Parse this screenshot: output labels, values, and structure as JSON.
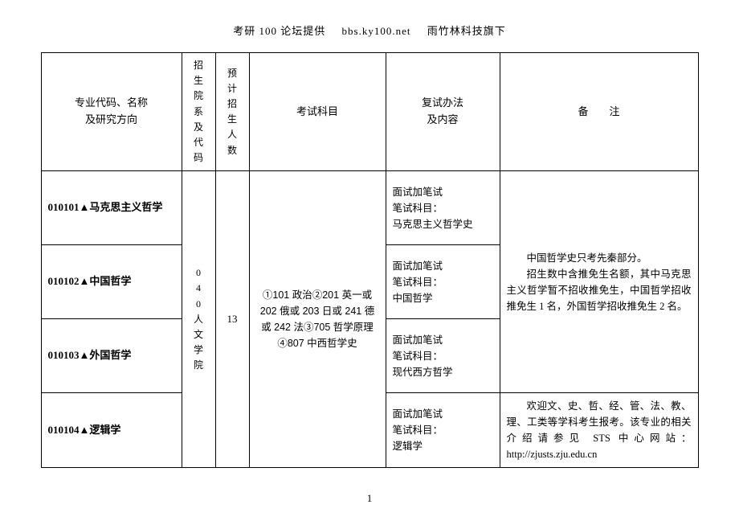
{
  "header": {
    "source": "考研 100 论坛提供",
    "url": "bbs.ky100.net",
    "brand": "雨竹林科技旗下"
  },
  "columns": {
    "major": "专业代码、名称\n及研究方向",
    "dept": "招生院系及代码",
    "count": "预计招生人数",
    "exam": "考试科目",
    "retest": "复试办法\n及内容",
    "note": "备　　注"
  },
  "shared": {
    "dept": "040人文学院",
    "count": "13",
    "exam": "①101 政治②201 英一或 202 俄或 203 日或 241 德或 242 法③705 哲学原理④807 中西哲学史"
  },
  "rows": [
    {
      "code": "010101",
      "name": "马克思主义哲学",
      "retest_l1": "面试加笔试",
      "retest_l2": "笔试科目：",
      "retest_l3": "马克思主义哲学史"
    },
    {
      "code": "010102",
      "name": "中国哲学",
      "retest_l1": "面试加笔试",
      "retest_l2": "笔试科目：",
      "retest_l3": "中国哲学"
    },
    {
      "code": "010103",
      "name": "外国哲学",
      "retest_l1": "面试加笔试",
      "retest_l2": "笔试科目：",
      "retest_l3": "现代西方哲学"
    },
    {
      "code": "010104",
      "name": "逻辑学",
      "retest_l1": "面试加笔试",
      "retest_l2": "笔试科目：",
      "retest_l3": "逻辑学"
    }
  ],
  "notes": {
    "top_p1": "中国哲学史只考先秦部分。",
    "top_p2": "招生数中含推免生名额，其中马克思主义哲学暂不招收推免生，中国哲学招收推免生 1 名，外国哲学招收推免生 2 名。",
    "bottom": "欢迎文、史、哲、经、管、法、教、理、工类等学科考生报考。该专业的相关介绍请参见 STS 中心网站：http://zjusts.zju.edu.cn"
  },
  "page_number": "1"
}
